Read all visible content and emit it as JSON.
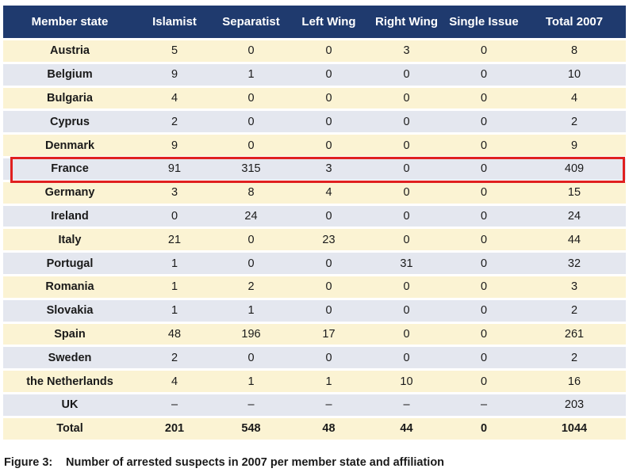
{
  "table": {
    "headers": [
      "Member state",
      "Islamist",
      "Separatist",
      "Left Wing",
      "Right Wing",
      "Single Issue",
      "Total 2007"
    ],
    "rows": [
      [
        "Austria",
        "5",
        "0",
        "0",
        "3",
        "0",
        "8"
      ],
      [
        "Belgium",
        "9",
        "1",
        "0",
        "0",
        "0",
        "10"
      ],
      [
        "Bulgaria",
        "4",
        "0",
        "0",
        "0",
        "0",
        "4"
      ],
      [
        "Cyprus",
        "2",
        "0",
        "0",
        "0",
        "0",
        "2"
      ],
      [
        "Denmark",
        "9",
        "0",
        "0",
        "0",
        "0",
        "9"
      ],
      [
        "France",
        "91",
        "315",
        "3",
        "0",
        "0",
        "409"
      ],
      [
        "Germany",
        "3",
        "8",
        "4",
        "0",
        "0",
        "15"
      ],
      [
        "Ireland",
        "0",
        "24",
        "0",
        "0",
        "0",
        "24"
      ],
      [
        "Italy",
        "21",
        "0",
        "23",
        "0",
        "0",
        "44"
      ],
      [
        "Portugal",
        "1",
        "0",
        "0",
        "31",
        "0",
        "32"
      ],
      [
        "Romania",
        "1",
        "2",
        "0",
        "0",
        "0",
        "3"
      ],
      [
        "Slovakia",
        "1",
        "1",
        "0",
        "0",
        "0",
        "2"
      ],
      [
        "Spain",
        "48",
        "196",
        "17",
        "0",
        "0",
        "261"
      ],
      [
        "Sweden",
        "2",
        "0",
        "0",
        "0",
        "0",
        "2"
      ],
      [
        "the Netherlands",
        "4",
        "1",
        "1",
        "10",
        "0",
        "16"
      ],
      [
        "UK",
        "–",
        "–",
        "–",
        "–",
        "–",
        "203"
      ]
    ],
    "total": [
      "Total",
      "201",
      "548",
      "48",
      "44",
      "0",
      "1044"
    ],
    "highlighted_row": "France"
  },
  "caption": {
    "label": "Figure 3:",
    "text": "Number of arrested suspects in 2007 per member state and affiliation"
  },
  "colors": {
    "header_bg": "#1f3a6e",
    "row_odd_bg": "#fbf3d3",
    "row_even_bg": "#e4e7ef",
    "highlight_border": "#e02020"
  }
}
